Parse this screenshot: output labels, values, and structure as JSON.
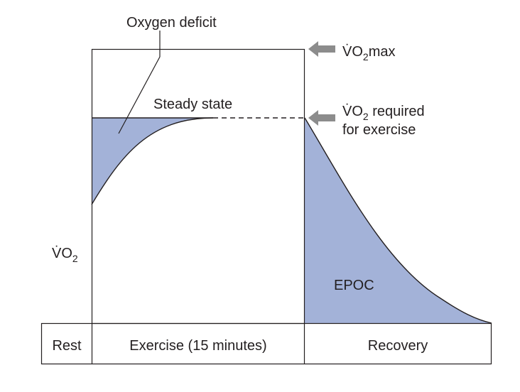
{
  "labels": {
    "oxygen_deficit": "Oxygen deficit",
    "steady_state": "Steady state",
    "vo2max_prefix": "V̇O",
    "vo2max_sub": "2",
    "vo2max_suffix": "max",
    "vo2req_prefix": "V̇O",
    "vo2req_sub": "2",
    "vo2req_suffix": " required",
    "vo2req_line2": "for exercise",
    "y_axis_prefix": "V̇O",
    "y_axis_sub": "2",
    "epoc": "EPOC"
  },
  "phases": {
    "rest": "Rest",
    "exercise": "Exercise (15 minutes)",
    "recovery": "Recovery"
  },
  "colors": {
    "fill": "#a3b2d8",
    "stroke": "#231f20",
    "arrow": "#8c8c8c"
  }
}
